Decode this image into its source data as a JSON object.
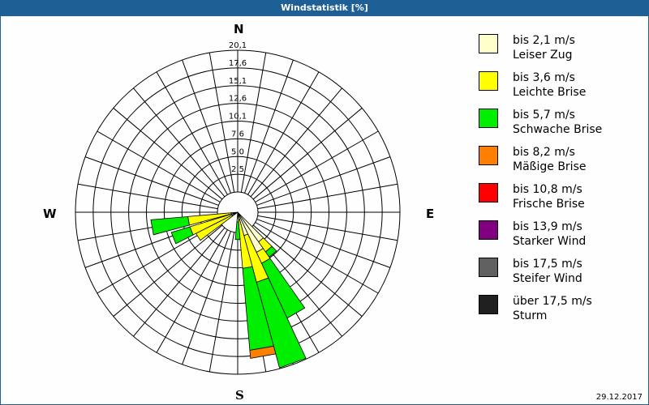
{
  "title": "Windstatistik [%]",
  "directions": {
    "n": "N",
    "e": "E",
    "s": "S",
    "w": "W"
  },
  "date": "29.12.2017",
  "legend": [
    {
      "range": "bis 2,1 m/s",
      "name": "Leiser Zug",
      "color": "#ffffcc"
    },
    {
      "range": "bis 3,6 m/s",
      "name": "Leichte Brise",
      "color": "#ffff00"
    },
    {
      "range": "bis 5,7 m/s",
      "name": "Schwache Brise",
      "color": "#00ee00"
    },
    {
      "range": "bis 8,2 m/s",
      "name": "Mäßige Brise",
      "color": "#ff8000"
    },
    {
      "range": "bis 10,8 m/s",
      "name": "Frische Brise",
      "color": "#ff0000"
    },
    {
      "range": "bis 13,9 m/s",
      "name": "Starker Wind",
      "color": "#800080"
    },
    {
      "range": "bis 17,5 m/s",
      "name": "Steifer Wind",
      "color": "#606060"
    },
    {
      "range": "über 17,5 m/s",
      "name": "Sturm",
      "color": "#202020"
    }
  ],
  "chart_data": {
    "type": "polar-bar (wind rose)",
    "title": "Windstatistik [%]",
    "radial_ticks": [
      "2,5",
      "5,0",
      "7,6",
      "10,1",
      "12,6",
      "15,1",
      "17,6",
      "20,1"
    ],
    "radial_max": 20.1,
    "sector_width_deg": 10,
    "series_names": [
      "bis 2,1 m/s",
      "bis 3,6 m/s",
      "bis 5,7 m/s",
      "bis 8,2 m/s",
      "bis 10,8 m/s",
      "bis 13,9 m/s",
      "bis 17,5 m/s",
      "über 17,5 m/s"
    ],
    "sectors": [
      {
        "dir_deg": 140,
        "values": [
          4.5,
          1.5,
          0.8,
          0,
          0,
          0,
          0,
          0
        ]
      },
      {
        "dir_deg": 150,
        "values": [
          5.5,
          1.5,
          7.5,
          0,
          0,
          0,
          0,
          0
        ]
      },
      {
        "dir_deg": 160,
        "values": [
          3.0,
          6.0,
          11.0,
          0,
          0,
          0,
          0,
          0
        ]
      },
      {
        "dir_deg": 170,
        "values": [
          1.0,
          6.0,
          10.2,
          1.0,
          0,
          0,
          0,
          0
        ]
      },
      {
        "dir_deg": 180,
        "values": [
          1.2,
          0,
          2.2,
          0,
          0,
          0,
          0,
          0
        ]
      },
      {
        "dir_deg": 238,
        "values": [
          0.8,
          5.0,
          0,
          0,
          0,
          0,
          0,
          0
        ]
      },
      {
        "dir_deg": 248,
        "values": [
          0.8,
          5.4,
          2.4,
          0,
          0,
          0,
          0,
          0
        ]
      },
      {
        "dir_deg": 260,
        "values": [
          0.8,
          5.4,
          4.6,
          0,
          0,
          0,
          0,
          0
        ]
      }
    ],
    "legend_position": "right",
    "grid": true
  }
}
